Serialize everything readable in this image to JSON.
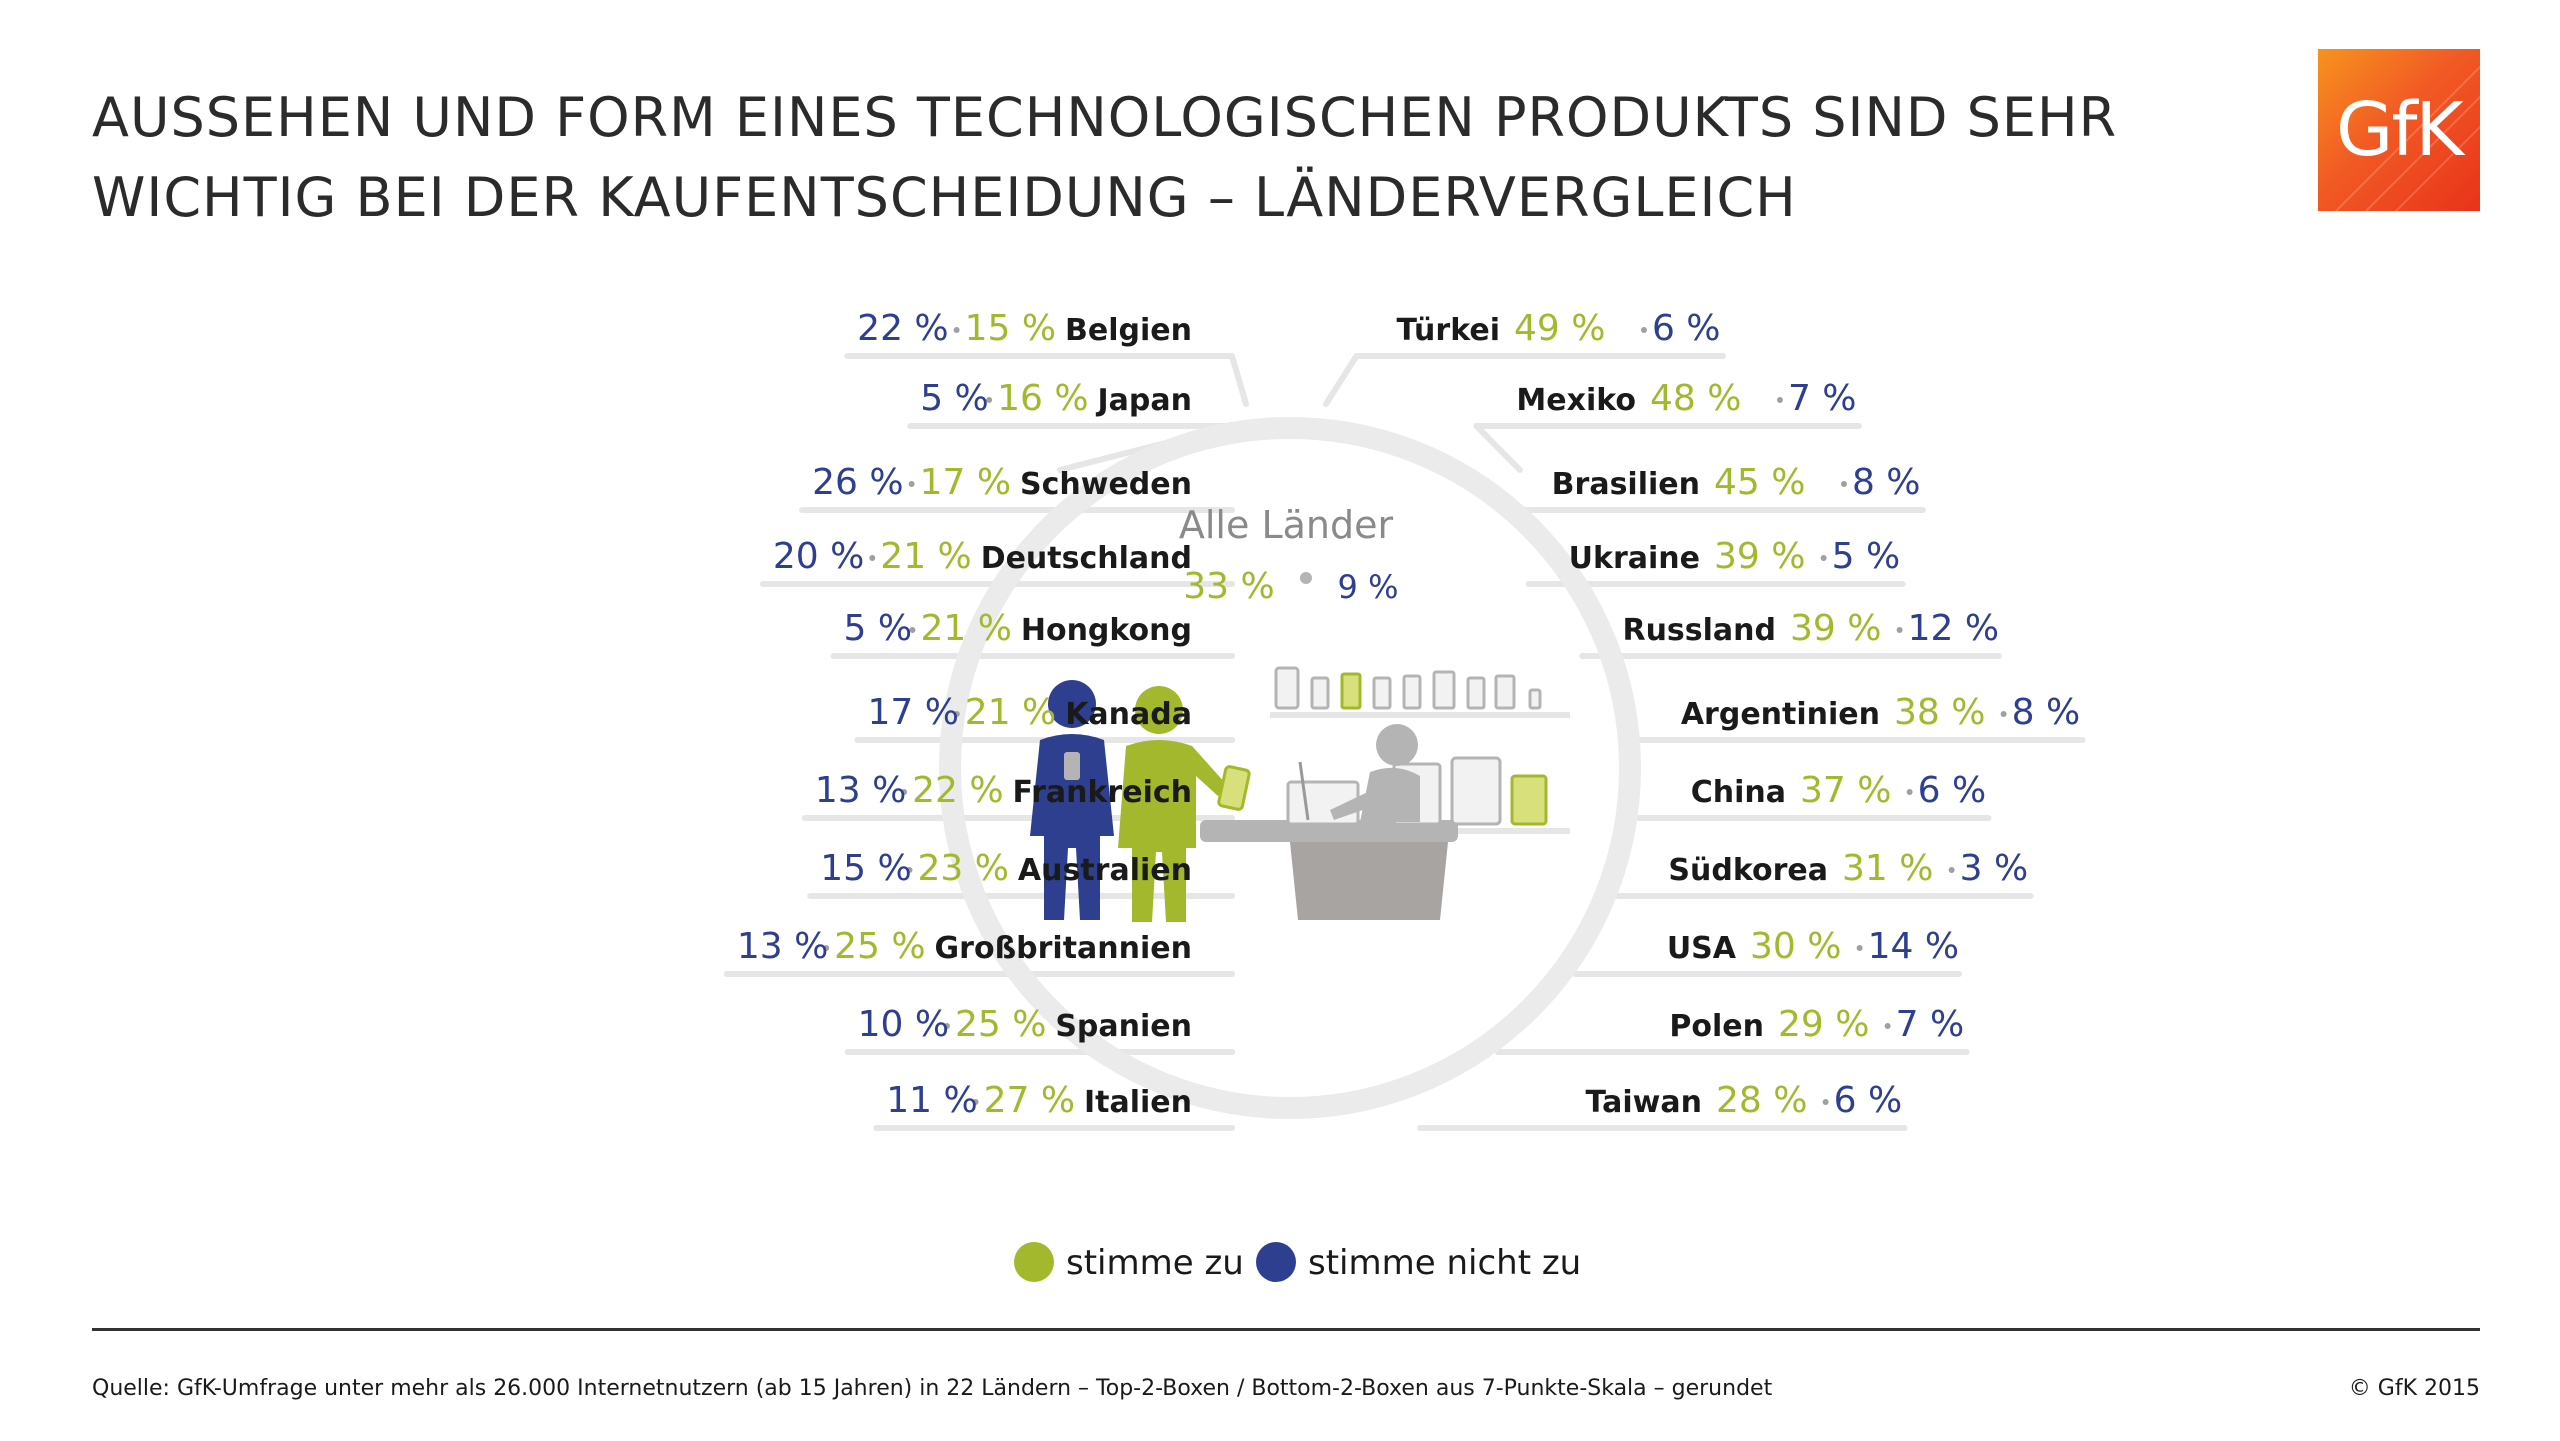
{
  "title": {
    "line1": "AUSSEHEN UND FORM EINES TECHNOLOGISCHEN PRODUKTS SIND SEHR",
    "line2": "WICHTIG BEI DER KAUFENTSCHEIDUNG – LÄNDERVERGLEICH"
  },
  "logo": {
    "text": "GfK"
  },
  "colors": {
    "agree": "#a3b82c",
    "disagree": "#2e3f8f",
    "ring": "#ebebeb",
    "illustration_gray": "#b4b4b4"
  },
  "chart_data": {
    "type": "table",
    "series": [
      {
        "name": "stimme zu",
        "color": "#a3b82c"
      },
      {
        "name": "stimme nicht zu",
        "color": "#2e3f8f"
      }
    ],
    "all_countries": {
      "label": "Alle Länder",
      "agree": 33,
      "disagree": 9,
      "agree_text": "33 %",
      "disagree_text": "9 %"
    },
    "left": [
      {
        "country": "Belgien",
        "agree": 15,
        "disagree": 22,
        "agree_text": "15 %",
        "disagree_text": "22 %"
      },
      {
        "country": "Japan",
        "agree": 16,
        "disagree": 5,
        "agree_text": "16 %",
        "disagree_text": "5 %"
      },
      {
        "country": "Schweden",
        "agree": 17,
        "disagree": 26,
        "agree_text": "17 %",
        "disagree_text": "26 %"
      },
      {
        "country": "Deutschland",
        "agree": 21,
        "disagree": 20,
        "agree_text": "21 %",
        "disagree_text": "20 %"
      },
      {
        "country": "Hongkong",
        "agree": 21,
        "disagree": 5,
        "agree_text": "21 %",
        "disagree_text": "5 %"
      },
      {
        "country": "Kanada",
        "agree": 21,
        "disagree": 17,
        "agree_text": "21 %",
        "disagree_text": "17 %"
      },
      {
        "country": "Frankreich",
        "agree": 22,
        "disagree": 13,
        "agree_text": "22 %",
        "disagree_text": "13 %"
      },
      {
        "country": "Australien",
        "agree": 23,
        "disagree": 15,
        "agree_text": "23 %",
        "disagree_text": "15 %"
      },
      {
        "country": "Großbritannien",
        "agree": 25,
        "disagree": 13,
        "agree_text": "25 %",
        "disagree_text": "13 %"
      },
      {
        "country": "Spanien",
        "agree": 25,
        "disagree": 10,
        "agree_text": "25 %",
        "disagree_text": "10 %"
      },
      {
        "country": "Italien",
        "agree": 27,
        "disagree": 11,
        "agree_text": "27 %",
        "disagree_text": "11 %"
      }
    ],
    "right": [
      {
        "country": "Türkei",
        "agree": 49,
        "disagree": 6,
        "agree_text": "49 %",
        "disagree_text": "6 %"
      },
      {
        "country": "Mexiko",
        "agree": 48,
        "disagree": 7,
        "agree_text": "48 %",
        "disagree_text": "7 %"
      },
      {
        "country": "Brasilien",
        "agree": 45,
        "disagree": 8,
        "agree_text": "45 %",
        "disagree_text": "8 %"
      },
      {
        "country": "Ukraine",
        "agree": 39,
        "disagree": 5,
        "agree_text": "39 %",
        "disagree_text": "5 %"
      },
      {
        "country": "Russland",
        "agree": 39,
        "disagree": 12,
        "agree_text": "39 %",
        "disagree_text": "12 %"
      },
      {
        "country": "Argentinien",
        "agree": 38,
        "disagree": 8,
        "agree_text": "38 %",
        "disagree_text": "8 %"
      },
      {
        "country": "China",
        "agree": 37,
        "disagree": 6,
        "agree_text": "37 %",
        "disagree_text": "6 %"
      },
      {
        "country": "Südkorea",
        "agree": 31,
        "disagree": 3,
        "agree_text": "31 %",
        "disagree_text": "3 %"
      },
      {
        "country": "USA",
        "agree": 30,
        "disagree": 14,
        "agree_text": "30 %",
        "disagree_text": "14 %"
      },
      {
        "country": "Polen",
        "agree": 29,
        "disagree": 7,
        "agree_text": "29 %",
        "disagree_text": "7 %"
      },
      {
        "country": "Taiwan",
        "agree": 28,
        "disagree": 6,
        "agree_text": "28 %",
        "disagree_text": "6 %"
      }
    ]
  },
  "legend": {
    "agree": "stimme zu",
    "disagree": "stimme nicht zu"
  },
  "footer": {
    "source": "Quelle: GfK-Umfrage unter mehr als 26.000 Internetnutzern (ab 15 Jahren) in 22 Ländern – Top-2-Boxen / Bottom-2-Boxen aus 7-Punkte-Skala – gerundet",
    "copyright": "© GfK 2015"
  }
}
